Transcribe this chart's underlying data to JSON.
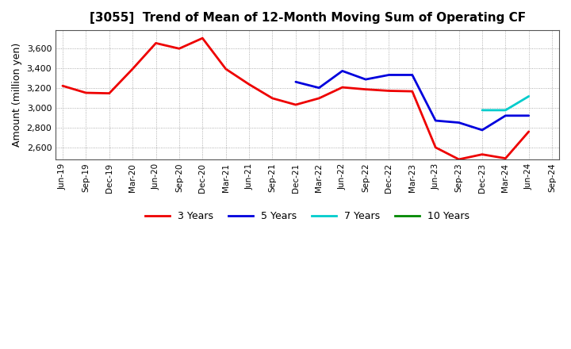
{
  "title": "[3055]  Trend of Mean of 12-Month Moving Sum of Operating CF",
  "ylabel": "Amount (million yen)",
  "background_color": "#ffffff",
  "plot_bg_color": "#ffffff",
  "ylim": [
    2480,
    3780
  ],
  "yticks": [
    2600,
    2800,
    3000,
    3200,
    3400,
    3600
  ],
  "x_labels": [
    "Jun-19",
    "Sep-19",
    "Dec-19",
    "Mar-20",
    "Jun-20",
    "Sep-20",
    "Dec-20",
    "Mar-21",
    "Jun-21",
    "Sep-21",
    "Dec-21",
    "Mar-22",
    "Jun-22",
    "Sep-22",
    "Dec-22",
    "Mar-23",
    "Jun-23",
    "Sep-23",
    "Dec-23",
    "Mar-24",
    "Jun-24",
    "Sep-24"
  ],
  "series": {
    "3 Years": {
      "color": "#ee0000",
      "linewidth": 2.0,
      "data_x": [
        "Jun-19",
        "Sep-19",
        "Dec-19",
        "Mar-20",
        "Jun-20",
        "Sep-20",
        "Dec-20",
        "Mar-21",
        "Jun-21",
        "Sep-21",
        "Dec-21",
        "Mar-22",
        "Jun-22",
        "Sep-22",
        "Dec-22",
        "Mar-23",
        "Jun-23",
        "Sep-23",
        "Dec-23",
        "Mar-24",
        "Jun-24"
      ],
      "data_y": [
        3220,
        3150,
        3145,
        3390,
        3650,
        3595,
        3700,
        3390,
        3235,
        3095,
        3030,
        3095,
        3205,
        3185,
        3170,
        3165,
        2600,
        2480,
        2530,
        2490,
        2760
      ]
    },
    "5 Years": {
      "color": "#0000dd",
      "linewidth": 2.0,
      "data_x": [
        "Dec-21",
        "Mar-22",
        "Jun-22",
        "Sep-22",
        "Dec-22",
        "Mar-23",
        "Jun-23",
        "Sep-23",
        "Dec-23",
        "Mar-24",
        "Jun-24"
      ],
      "data_y": [
        3260,
        3200,
        3370,
        3285,
        3330,
        3330,
        2870,
        2850,
        2775,
        2920,
        2920
      ]
    },
    "7 Years": {
      "color": "#00cccc",
      "linewidth": 2.0,
      "data_x": [
        "Dec-23",
        "Mar-24",
        "Jun-24"
      ],
      "data_y": [
        2975,
        2975,
        3115
      ]
    },
    "10 Years": {
      "color": "#008800",
      "linewidth": 2.0,
      "data_x": [],
      "data_y": []
    }
  },
  "legend_entries": [
    "3 Years",
    "5 Years",
    "7 Years",
    "10 Years"
  ],
  "legend_colors": [
    "#ee0000",
    "#0000dd",
    "#00cccc",
    "#008800"
  ]
}
